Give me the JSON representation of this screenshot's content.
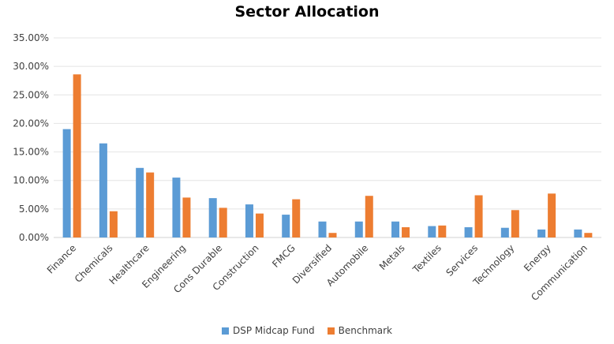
{
  "chart_data": {
    "type": "bar",
    "title": "Sector Allocation",
    "categories": [
      "Finance",
      "Chemicals",
      "Healthcare",
      "Engineering",
      "Cons Durable",
      "Construction",
      "FMCG",
      "Diversified",
      "Automobile",
      "Metals",
      "Textiles",
      "Services",
      "Technology",
      "Energy",
      "Communication"
    ],
    "series": [
      {
        "name": "DSP Midcap Fund",
        "color": "#5B9BD5",
        "values": [
          19.0,
          16.5,
          12.2,
          10.5,
          6.9,
          5.8,
          4.0,
          2.8,
          2.8,
          2.8,
          2.0,
          1.8,
          1.7,
          1.4,
          1.4
        ]
      },
      {
        "name": "Benchmark",
        "color": "#ED7D31",
        "values": [
          28.6,
          4.6,
          11.4,
          7.0,
          5.2,
          4.2,
          6.7,
          0.8,
          7.3,
          1.8,
          2.1,
          7.4,
          4.8,
          7.7,
          0.8
        ]
      }
    ],
    "yticks": [
      "0.00%",
      "5.00%",
      "10.00%",
      "15.00%",
      "20.00%",
      "25.00%",
      "30.00%",
      "35.00%"
    ],
    "ylim": [
      0,
      35
    ],
    "grid": true,
    "legend_position": "bottom"
  }
}
